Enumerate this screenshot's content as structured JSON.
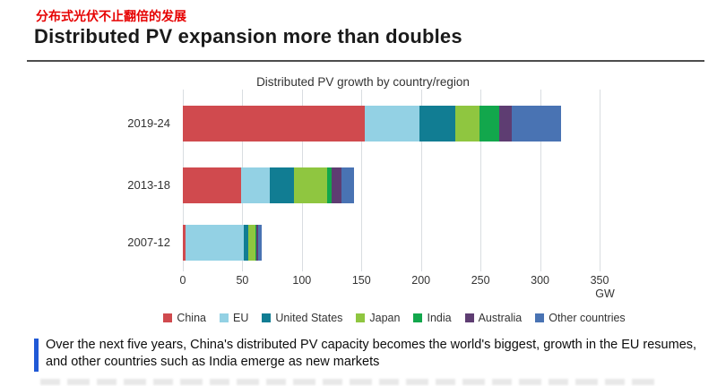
{
  "page": {
    "kicker_zh": "分布式光伏不止翻倍的发展",
    "title": "Distributed PV expansion more than doubles"
  },
  "caption": {
    "text": "Over the next five years, China's distributed PV capacity becomes the world's biggest, growth in the EU resumes, and other countries such as India emerge as new markets"
  },
  "colors": {
    "kicker_red": "#e60000",
    "caption_accent_blue": "#2059d6",
    "divider_gray": "#4d4d4d",
    "gridline_gray": "#d9dde1"
  },
  "chart_data": {
    "type": "bar",
    "orientation": "horizontal",
    "stacked": true,
    "title": "Distributed PV growth by country/region",
    "unit": "GW",
    "categories": [
      "2019-24",
      "2013-18",
      "2007-12"
    ],
    "series": [
      {
        "name": "China",
        "color": "#d04a4e",
        "values": [
          153,
          49,
          2
        ]
      },
      {
        "name": "EU",
        "color": "#93d1e4",
        "values": [
          46,
          24,
          49
        ]
      },
      {
        "name": "United States",
        "color": "#117d93",
        "values": [
          30,
          20,
          4
        ]
      },
      {
        "name": "Japan",
        "color": "#8fc640",
        "values": [
          20,
          28,
          6
        ]
      },
      {
        "name": "India",
        "color": "#12a74c",
        "values": [
          17,
          4,
          0.5
        ]
      },
      {
        "name": "Australia",
        "color": "#5e3d72",
        "values": [
          10,
          8,
          2
        ]
      },
      {
        "name": "Other countries",
        "color": "#4973b3",
        "values": [
          42,
          11,
          3
        ]
      }
    ],
    "totals": [
      318,
      144,
      66.5
    ],
    "xlim": [
      0,
      350
    ],
    "xticks": [
      0,
      50,
      100,
      150,
      200,
      250,
      300,
      350
    ],
    "xlabel": "GW",
    "grid": true,
    "legend_position": "bottom"
  }
}
